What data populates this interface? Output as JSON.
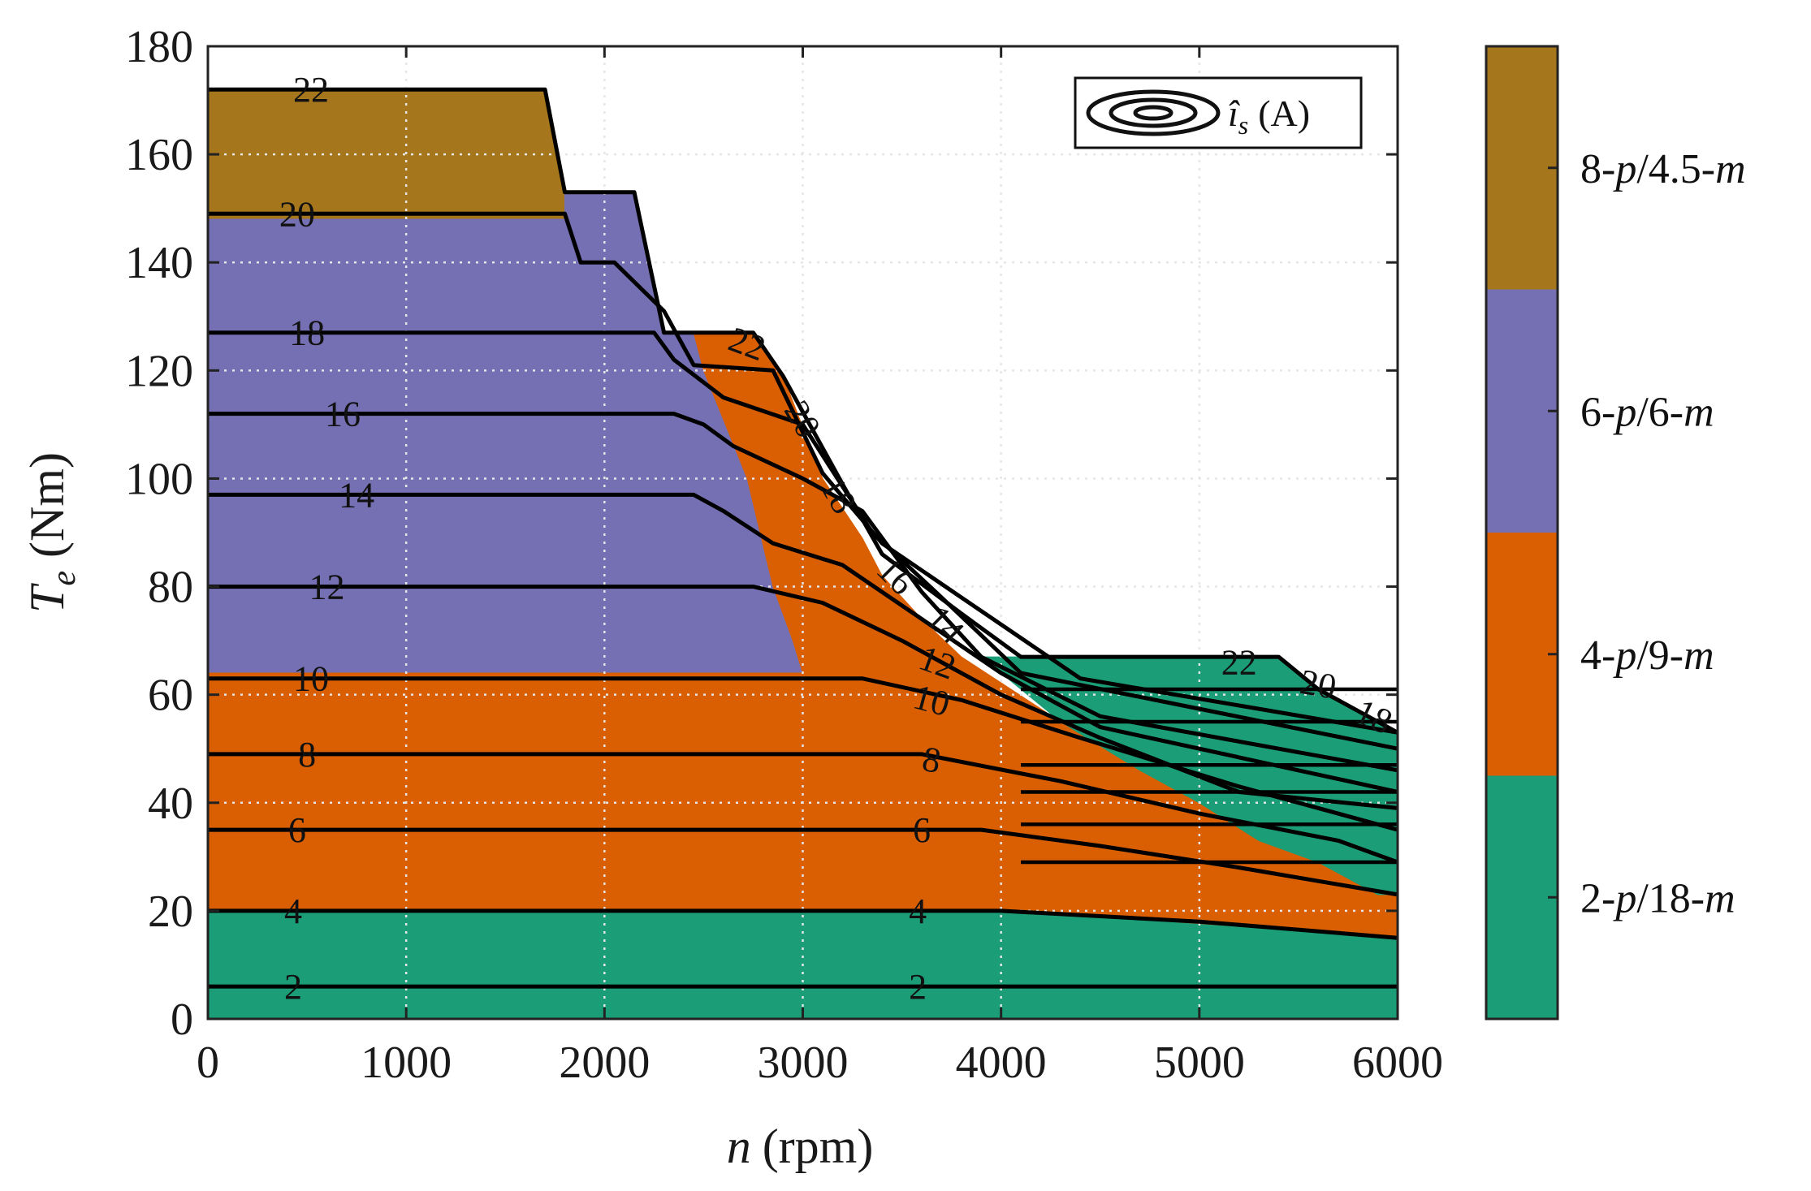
{
  "chart_data": {
    "type": "contour-map",
    "xlabel": {
      "var": "n",
      "unit": "(rpm)"
    },
    "ylabel": {
      "var": "T",
      "sub": "e",
      "unit": "(Nm)"
    },
    "xlim": [
      0,
      6000
    ],
    "ylim": [
      0,
      180
    ],
    "xticks": [
      "0",
      "1000",
      "2000",
      "3000",
      "4000",
      "5000",
      "6000"
    ],
    "yticks": [
      "0",
      "20",
      "40",
      "60",
      "80",
      "100",
      "120",
      "140",
      "160",
      "180"
    ],
    "grid": true,
    "legend": {
      "var": "î",
      "sub": "s",
      "unit": "(A)",
      "position": "top-right"
    },
    "colors": {
      "c2": "#1b9e77",
      "c4": "#d95f02",
      "c6": "#7570b3",
      "c8": "#a6761d"
    },
    "regions": [
      {
        "name": "8-p/4.5-m",
        "color_key": "c8",
        "points": [
          [
            0,
            172
          ],
          [
            1700,
            172
          ],
          [
            1800,
            153
          ],
          [
            1800,
            148
          ],
          [
            0,
            148
          ]
        ]
      },
      {
        "name": "6-p/6-m",
        "color_key": "c6",
        "points": [
          [
            0,
            148
          ],
          [
            1800,
            148
          ],
          [
            1800,
            153
          ],
          [
            2150,
            153
          ],
          [
            2300,
            127
          ],
          [
            2450,
            127
          ],
          [
            2500,
            120
          ],
          [
            2720,
            100
          ],
          [
            2850,
            80
          ],
          [
            2950,
            70
          ],
          [
            3000,
            64
          ],
          [
            0,
            64
          ]
        ]
      },
      {
        "name": "4-p/9-m",
        "color_key": "c4",
        "points": [
          [
            0,
            64
          ],
          [
            3000,
            64
          ],
          [
            2950,
            70
          ],
          [
            2850,
            80
          ],
          [
            2720,
            100
          ],
          [
            2500,
            120
          ],
          [
            2450,
            127
          ],
          [
            2750,
            127
          ],
          [
            2900,
            119
          ],
          [
            3100,
            100
          ],
          [
            3300,
            89
          ],
          [
            3400,
            82
          ],
          [
            3600,
            74
          ],
          [
            3800,
            67
          ],
          [
            4300,
            55
          ],
          [
            4700,
            46
          ],
          [
            5000,
            40
          ],
          [
            5300,
            33
          ],
          [
            5600,
            29
          ],
          [
            5900,
            23
          ],
          [
            6000,
            23
          ],
          [
            6000,
            15
          ],
          [
            4000,
            20
          ],
          [
            0,
            20
          ]
        ]
      },
      {
        "name": "2-p/18-m",
        "color_key": "c2",
        "points": [
          [
            0,
            0
          ],
          [
            6000,
            0
          ],
          [
            6000,
            15
          ],
          [
            4000,
            20
          ],
          [
            0,
            20
          ]
        ]
      },
      {
        "name": "2-p/18-m",
        "color_key": "c2",
        "points": [
          [
            3900,
            67
          ],
          [
            5400,
            67
          ],
          [
            5600,
            61
          ],
          [
            6000,
            53
          ],
          [
            6000,
            23
          ],
          [
            5900,
            23
          ],
          [
            5600,
            29
          ],
          [
            5300,
            33
          ],
          [
            5000,
            40
          ],
          [
            4700,
            46
          ],
          [
            4300,
            55
          ]
        ]
      }
    ],
    "contours": [
      {
        "level": "2",
        "points": [
          [
            0,
            6
          ],
          [
            6000,
            6
          ]
        ]
      },
      {
        "level": "4",
        "points": [
          [
            0,
            20
          ],
          [
            4000,
            20
          ],
          [
            5000,
            18
          ],
          [
            6000,
            15
          ]
        ]
      },
      {
        "level": "6",
        "points": [
          [
            0,
            35
          ],
          [
            3900,
            35
          ],
          [
            4500,
            32
          ],
          [
            5200,
            28
          ],
          [
            6000,
            23
          ]
        ]
      },
      {
        "level": "8",
        "points": [
          [
            0,
            49
          ],
          [
            3600,
            49
          ],
          [
            4300,
            44
          ],
          [
            5000,
            38
          ],
          [
            5700,
            33
          ],
          [
            6000,
            29
          ]
        ]
      },
      {
        "level": "10",
        "points": [
          [
            0,
            63
          ],
          [
            3300,
            63
          ],
          [
            3800,
            59
          ],
          [
            4400,
            52
          ],
          [
            5200,
            43
          ],
          [
            6000,
            35
          ]
        ]
      },
      {
        "level": "12",
        "points": [
          [
            0,
            80
          ],
          [
            2750,
            80
          ],
          [
            3100,
            77
          ],
          [
            3500,
            70
          ],
          [
            4000,
            60
          ],
          [
            4500,
            52
          ],
          [
            5200,
            42
          ],
          [
            6000,
            39
          ]
        ]
      },
      {
        "level": "14",
        "points": [
          [
            0,
            97
          ],
          [
            2450,
            97
          ],
          [
            2600,
            94
          ],
          [
            2850,
            88
          ],
          [
            3200,
            84
          ],
          [
            3600,
            74
          ],
          [
            4000,
            64
          ],
          [
            4500,
            54
          ],
          [
            6000,
            42
          ]
        ]
      },
      {
        "level": "16",
        "points": [
          [
            0,
            112
          ],
          [
            2350,
            112
          ],
          [
            2500,
            110
          ],
          [
            2650,
            106
          ],
          [
            3000,
            100
          ],
          [
            3300,
            94
          ],
          [
            3600,
            79
          ],
          [
            3900,
            67
          ],
          [
            4500,
            56
          ],
          [
            6000,
            46
          ]
        ]
      },
      {
        "level": "18",
        "points": [
          [
            0,
            127
          ],
          [
            2250,
            127
          ],
          [
            2350,
            122
          ],
          [
            2600,
            115
          ],
          [
            3000,
            110
          ],
          [
            3350,
            90
          ],
          [
            3700,
            78
          ],
          [
            4100,
            64
          ],
          [
            6000,
            50
          ]
        ]
      },
      {
        "level": "20",
        "points": [
          [
            0,
            149
          ],
          [
            1800,
            149
          ],
          [
            1880,
            140
          ],
          [
            2050,
            140
          ],
          [
            2300,
            131
          ],
          [
            2450,
            121
          ],
          [
            2850,
            120
          ],
          [
            3100,
            101
          ],
          [
            3400,
            88
          ],
          [
            3800,
            78
          ],
          [
            4400,
            63
          ],
          [
            6000,
            53
          ]
        ]
      },
      {
        "level": "22",
        "points": [
          [
            0,
            172
          ],
          [
            1700,
            172
          ],
          [
            1800,
            153
          ],
          [
            2150,
            153
          ],
          [
            2300,
            127
          ],
          [
            2750,
            127
          ],
          [
            2900,
            119
          ],
          [
            3200,
            99
          ],
          [
            3400,
            86
          ],
          [
            3800,
            75
          ],
          [
            4100,
            67
          ],
          [
            5400,
            67
          ],
          [
            5600,
            61
          ],
          [
            6000,
            53
          ]
        ]
      }
    ],
    "contour_labels": [
      {
        "text": "22",
        "x": 520,
        "y": 172,
        "angle": 0
      },
      {
        "text": "20",
        "x": 450,
        "y": 149,
        "angle": 0
      },
      {
        "text": "18",
        "x": 500,
        "y": 127,
        "angle": 0
      },
      {
        "text": "16",
        "x": 680,
        "y": 112,
        "angle": 0
      },
      {
        "text": "14",
        "x": 750,
        "y": 97,
        "angle": 0
      },
      {
        "text": "12",
        "x": 600,
        "y": 80,
        "angle": 0
      },
      {
        "text": "10",
        "x": 520,
        "y": 63,
        "angle": 0
      },
      {
        "text": "8",
        "x": 500,
        "y": 49,
        "angle": 0
      },
      {
        "text": "6",
        "x": 450,
        "y": 35,
        "angle": 0
      },
      {
        "text": "4",
        "x": 430,
        "y": 20,
        "angle": 0
      },
      {
        "text": "2",
        "x": 430,
        "y": 6,
        "angle": 0
      },
      {
        "text": "22",
        "x": 2720,
        "y": 125,
        "angle": 20
      },
      {
        "text": "20",
        "x": 3000,
        "y": 111,
        "angle": 60
      },
      {
        "text": "18",
        "x": 3180,
        "y": 97,
        "angle": 60
      },
      {
        "text": "16",
        "x": 3470,
        "y": 82,
        "angle": 45
      },
      {
        "text": "14",
        "x": 3720,
        "y": 73,
        "angle": 45
      },
      {
        "text": "12",
        "x": 3680,
        "y": 66,
        "angle": 20
      },
      {
        "text": "10",
        "x": 3650,
        "y": 59,
        "angle": 15
      },
      {
        "text": "8",
        "x": 3650,
        "y": 48,
        "angle": 10
      },
      {
        "text": "6",
        "x": 3600,
        "y": 35,
        "angle": 0
      },
      {
        "text": "4",
        "x": 3580,
        "y": 20,
        "angle": 0
      },
      {
        "text": "2",
        "x": 3580,
        "y": 6,
        "angle": 0
      },
      {
        "text": "22",
        "x": 5200,
        "y": 66,
        "angle": 0
      },
      {
        "text": "20",
        "x": 5600,
        "y": 62,
        "angle": 10
      },
      {
        "text": "18",
        "x": 5880,
        "y": 56,
        "angle": 25
      }
    ],
    "green_region_lines": [
      61,
      55,
      47,
      42,
      36,
      29
    ],
    "colorbar": [
      {
        "label_prefix": "8-",
        "p": "p",
        "mid": "/4.5-",
        "m": "m",
        "color_key": "c8"
      },
      {
        "label_prefix": "6-",
        "p": "p",
        "mid": "/6-",
        "m": "m",
        "color_key": "c6"
      },
      {
        "label_prefix": "4-",
        "p": "p",
        "mid": "/9-",
        "m": "m",
        "color_key": "c4"
      },
      {
        "label_prefix": "2-",
        "p": "p",
        "mid": "/18-",
        "m": "m",
        "color_key": "c2"
      }
    ]
  }
}
